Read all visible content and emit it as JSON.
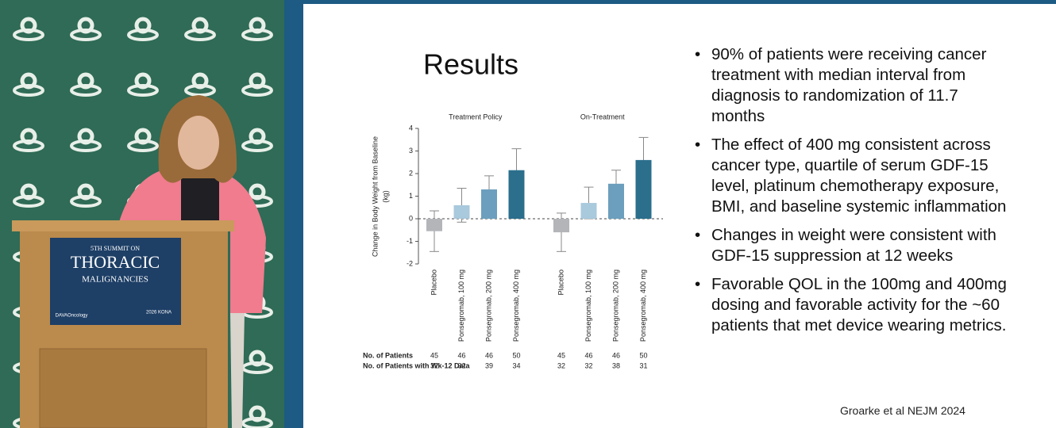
{
  "podium": {
    "line1": "5TH SUMMIT ON",
    "line2": "THORACIC",
    "line3": "MALIGNANCIES",
    "brand": "DAVAOncology",
    "event": "2026 KONA"
  },
  "slide": {
    "title": "Results",
    "bullets": [
      "90% of patients were receiving cancer treatment with median interval from diagnosis to randomization of 11.7 months",
      "The effect of 400 mg consistent across cancer type, quartile of serum GDF-15 level, platinum chemotherapy exposure, BMI, and baseline systemic inflammation",
      "Changes in weight were consistent with GDF-15 suppression at 12 weeks",
      "Favorable QOL in the 100mg and 400mg dosing and favorable activity for the ~60 patients that met device wearing metrics."
    ],
    "citation": "Groarke et al NEJM 2024"
  },
  "chart_data": {
    "type": "bar",
    "ylabel": [
      "Change in Body Weight from Baseline",
      "(kg)"
    ],
    "ylim": [
      -2,
      4
    ],
    "yticks": [
      -2,
      -1,
      0,
      1,
      2,
      3,
      4
    ],
    "categories": [
      "Placebo",
      "Ponsegromab, 100 mg",
      "Ponsegromab, 200 mg",
      "Ponsegromab, 400 mg"
    ],
    "colors": [
      "#b3b5b9",
      "#a9c9dc",
      "#6c9fbd",
      "#2b6f8c"
    ],
    "row_labels": [
      "No. of Patients",
      "No. of Patients with Wk-12 Data"
    ],
    "panels": [
      {
        "title": "Treatment Policy",
        "values": [
          -0.55,
          0.6,
          1.3,
          2.15
        ],
        "errors": [
          0.9,
          0.75,
          0.6,
          0.95
        ],
        "patients": [
          45,
          46,
          46,
          50
        ],
        "patients_wk12": [
          32,
          32,
          39,
          34
        ]
      },
      {
        "title": "On-Treatment",
        "values": [
          -0.6,
          0.7,
          1.55,
          2.6
        ],
        "errors": [
          0.85,
          0.7,
          0.6,
          1.0
        ],
        "patients": [
          45,
          46,
          46,
          50
        ],
        "patients_wk12": [
          32,
          32,
          38,
          31
        ]
      }
    ]
  }
}
